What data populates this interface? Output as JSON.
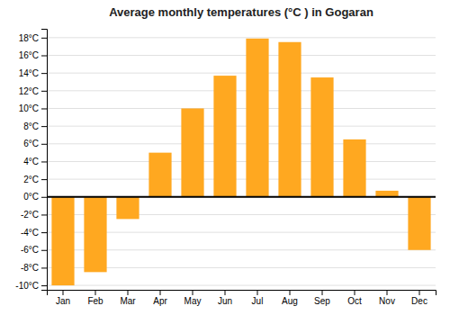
{
  "chart_data": {
    "type": "bar",
    "title": "Average monthly temperatures (°C ) in Gogaran",
    "categories": [
      "Jan",
      "Feb",
      "Mar",
      "Apr",
      "May",
      "Jun",
      "Jul",
      "Aug",
      "Sep",
      "Oct",
      "Nov",
      "Dec"
    ],
    "values": [
      -10,
      -8.5,
      -2.5,
      5,
      10,
      13.7,
      17.9,
      17.5,
      13.5,
      6.5,
      0.7,
      -6
    ],
    "color": "#FFA820",
    "ylim": [
      -10.5,
      19
    ],
    "yticks": [
      {
        "value": -10,
        "label": "-10°C"
      },
      {
        "value": -8,
        "label": "-8°C"
      },
      {
        "value": -6,
        "label": "-6°C"
      },
      {
        "value": -4,
        "label": "-4°C"
      },
      {
        "value": -2,
        "label": "-2°C"
      },
      {
        "value": 0,
        "label": "0°C"
      },
      {
        "value": 2,
        "label": "2°C"
      },
      {
        "value": 4,
        "label": "4°C"
      },
      {
        "value": 6,
        "label": "6°C"
      },
      {
        "value": 8,
        "label": "8°C"
      },
      {
        "value": 10,
        "label": "10°C"
      },
      {
        "value": 12,
        "label": "12°C"
      },
      {
        "value": 14,
        "label": "14°C"
      },
      {
        "value": 16,
        "label": "16°C"
      },
      {
        "value": 18,
        "label": "18°C"
      }
    ],
    "grid": true
  }
}
